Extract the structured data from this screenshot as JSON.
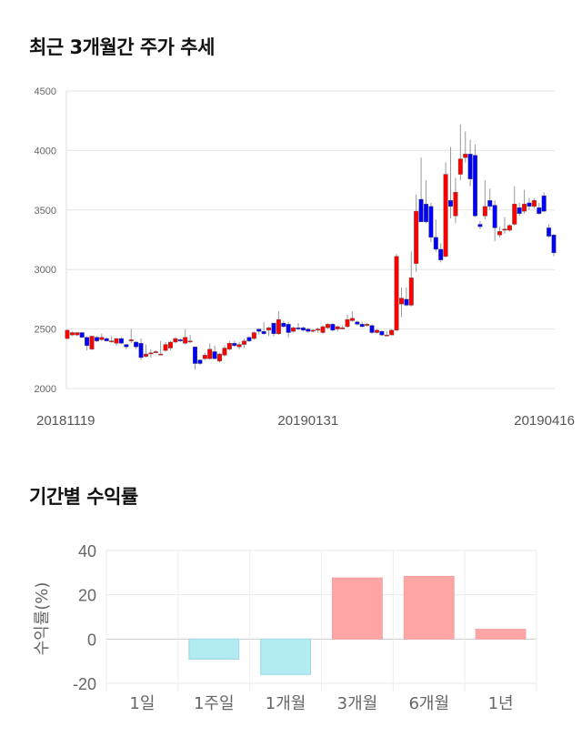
{
  "sections": {
    "price_title": "최근 3개월간 주가 추세",
    "return_title": "기간별 수익률"
  },
  "colors": {
    "up": "#ff0000",
    "down": "#0000ff",
    "positive_bar": "#ffa5a5",
    "negative_bar": "#b2ebf2"
  },
  "chart_data": [
    {
      "type": "candlestick",
      "title": "최근 3개월간 주가 추세",
      "ylim": [
        2000,
        4500
      ],
      "yticks": [
        "2000",
        "2500",
        "3000",
        "3500",
        "4000",
        "4500"
      ],
      "xtick_labels": [
        {
          "label": "20181119",
          "index": 0
        },
        {
          "label": "20190131",
          "index": 49
        },
        {
          "label": "20190416",
          "index": 99
        }
      ],
      "grid": true,
      "ohlc_format": "open,close,high,low",
      "candles": [
        [
          2420,
          2490,
          2495,
          2415
        ],
        [
          2450,
          2470,
          2480,
          2440
        ],
        [
          2450,
          2470,
          2475,
          2440
        ],
        [
          2470,
          2430,
          2475,
          2425
        ],
        [
          2430,
          2360,
          2440,
          2320
        ],
        [
          2330,
          2440,
          2445,
          2325
        ],
        [
          2430,
          2400,
          2440,
          2390
        ],
        [
          2410,
          2430,
          2460,
          2400
        ],
        [
          2420,
          2400,
          2430,
          2395
        ],
        [
          2400,
          2400,
          2440,
          2385
        ],
        [
          2380,
          2420,
          2425,
          2360
        ],
        [
          2420,
          2380,
          2430,
          2375
        ],
        [
          2370,
          2350,
          2375,
          2330
        ],
        [
          2400,
          2410,
          2500,
          2380
        ],
        [
          2390,
          2350,
          2400,
          2330
        ],
        [
          2380,
          2260,
          2420,
          2240
        ],
        [
          2270,
          2290,
          2370,
          2260
        ],
        [
          2300,
          2300,
          2330,
          2260
        ],
        [
          2310,
          2310,
          2320,
          2300
        ],
        [
          2290,
          2290,
          2400,
          2280
        ],
        [
          2320,
          2370,
          2390,
          2310
        ],
        [
          2340,
          2390,
          2400,
          2320
        ],
        [
          2390,
          2420,
          2430,
          2380
        ],
        [
          2410,
          2400,
          2420,
          2390
        ],
        [
          2380,
          2430,
          2500,
          2370
        ],
        [
          2400,
          2400,
          2450,
          2380
        ],
        [
          2350,
          2210,
          2350,
          2160
        ],
        [
          2240,
          2210,
          2245,
          2200
        ],
        [
          2250,
          2280,
          2300,
          2240
        ],
        [
          2250,
          2330,
          2380,
          2245
        ],
        [
          2310,
          2250,
          2360,
          2245
        ],
        [
          2230,
          2290,
          2300,
          2220
        ],
        [
          2280,
          2340,
          2360,
          2270
        ],
        [
          2330,
          2380,
          2400,
          2320
        ],
        [
          2380,
          2360,
          2400,
          2350
        ],
        [
          2350,
          2370,
          2390,
          2330
        ],
        [
          2370,
          2400,
          2420,
          2340
        ],
        [
          2430,
          2400,
          2440,
          2390
        ],
        [
          2420,
          2470,
          2480,
          2410
        ],
        [
          2500,
          2480,
          2500,
          2450
        ],
        [
          2480,
          2460,
          2560,
          2450
        ],
        [
          2490,
          2510,
          2520,
          2440
        ],
        [
          2550,
          2460,
          2550,
          2440
        ],
        [
          2460,
          2580,
          2650,
          2450
        ],
        [
          2550,
          2520,
          2570,
          2510
        ],
        [
          2540,
          2470,
          2560,
          2430
        ],
        [
          2480,
          2510,
          2520,
          2470
        ],
        [
          2510,
          2500,
          2550,
          2490
        ],
        [
          2510,
          2490,
          2520,
          2480
        ],
        [
          2500,
          2480,
          2510,
          2470
        ],
        [
          2490,
          2490,
          2500,
          2470
        ],
        [
          2490,
          2500,
          2510,
          2470
        ],
        [
          2470,
          2520,
          2530,
          2460
        ],
        [
          2510,
          2540,
          2550,
          2500
        ],
        [
          2540,
          2490,
          2550,
          2480
        ],
        [
          2500,
          2520,
          2530,
          2480
        ],
        [
          2510,
          2510,
          2530,
          2500
        ],
        [
          2520,
          2580,
          2620,
          2510
        ],
        [
          2570,
          2590,
          2650,
          2560
        ],
        [
          2560,
          2540,
          2570,
          2530
        ],
        [
          2540,
          2520,
          2560,
          2510
        ],
        [
          2530,
          2540,
          2550,
          2520
        ],
        [
          2530,
          2470,
          2540,
          2460
        ],
        [
          2470,
          2490,
          2500,
          2460
        ],
        [
          2480,
          2450,
          2490,
          2440
        ],
        [
          2450,
          2450,
          2480,
          2440
        ],
        [
          2450,
          2490,
          2500,
          2450
        ],
        [
          2490,
          3110,
          3130,
          2480
        ],
        [
          2710,
          2760,
          2850,
          2600
        ],
        [
          2750,
          2700,
          2850,
          2690
        ],
        [
          2700,
          2930,
          3150,
          2690
        ],
        [
          3050,
          3490,
          3630,
          2980
        ],
        [
          3590,
          3400,
          3940,
          3400
        ],
        [
          3550,
          3400,
          3750,
          3390
        ],
        [
          3530,
          3270,
          3560,
          3230
        ],
        [
          3270,
          3170,
          3420,
          3150
        ],
        [
          3170,
          3080,
          3220,
          3060
        ],
        [
          3110,
          3800,
          3900,
          3100
        ],
        [
          3580,
          3530,
          4030,
          3430
        ],
        [
          3450,
          3650,
          3770,
          3390
        ],
        [
          3800,
          3930,
          4220,
          3750
        ],
        [
          3940,
          3970,
          4160,
          3900
        ],
        [
          3970,
          3760,
          4090,
          3700
        ],
        [
          3960,
          3450,
          4050,
          3440
        ],
        [
          3380,
          3360,
          3410,
          3340
        ],
        [
          3450,
          3530,
          3750,
          3420
        ],
        [
          3580,
          3530,
          3680,
          3500
        ],
        [
          3540,
          3350,
          3580,
          3240
        ],
        [
          3290,
          3320,
          3360,
          3270
        ],
        [
          3330,
          3340,
          3440,
          3300
        ],
        [
          3330,
          3370,
          3380,
          3320
        ],
        [
          3380,
          3550,
          3700,
          3370
        ],
        [
          3520,
          3470,
          3560,
          3450
        ],
        [
          3490,
          3550,
          3670,
          3470
        ],
        [
          3560,
          3530,
          3600,
          3500
        ],
        [
          3530,
          3580,
          3600,
          3510
        ],
        [
          3520,
          3470,
          3560,
          3460
        ],
        [
          3620,
          3490,
          3650,
          3480
        ],
        [
          3350,
          3280,
          3380,
          3270
        ],
        [
          3290,
          3140,
          3300,
          3110
        ]
      ]
    },
    {
      "type": "bar",
      "title": "기간별 수익률",
      "ylabel": "수익률(%)",
      "xlabel": "",
      "ylim": [
        -20,
        40
      ],
      "yticks": [
        "-20",
        "0",
        "20",
        "40"
      ],
      "categories": [
        "1일",
        "1주일",
        "1개월",
        "3개월",
        "6개월",
        "1년"
      ],
      "values": [
        0,
        -9.1,
        -16.0,
        27.6,
        28.3,
        4.4
      ],
      "grid": true
    }
  ]
}
